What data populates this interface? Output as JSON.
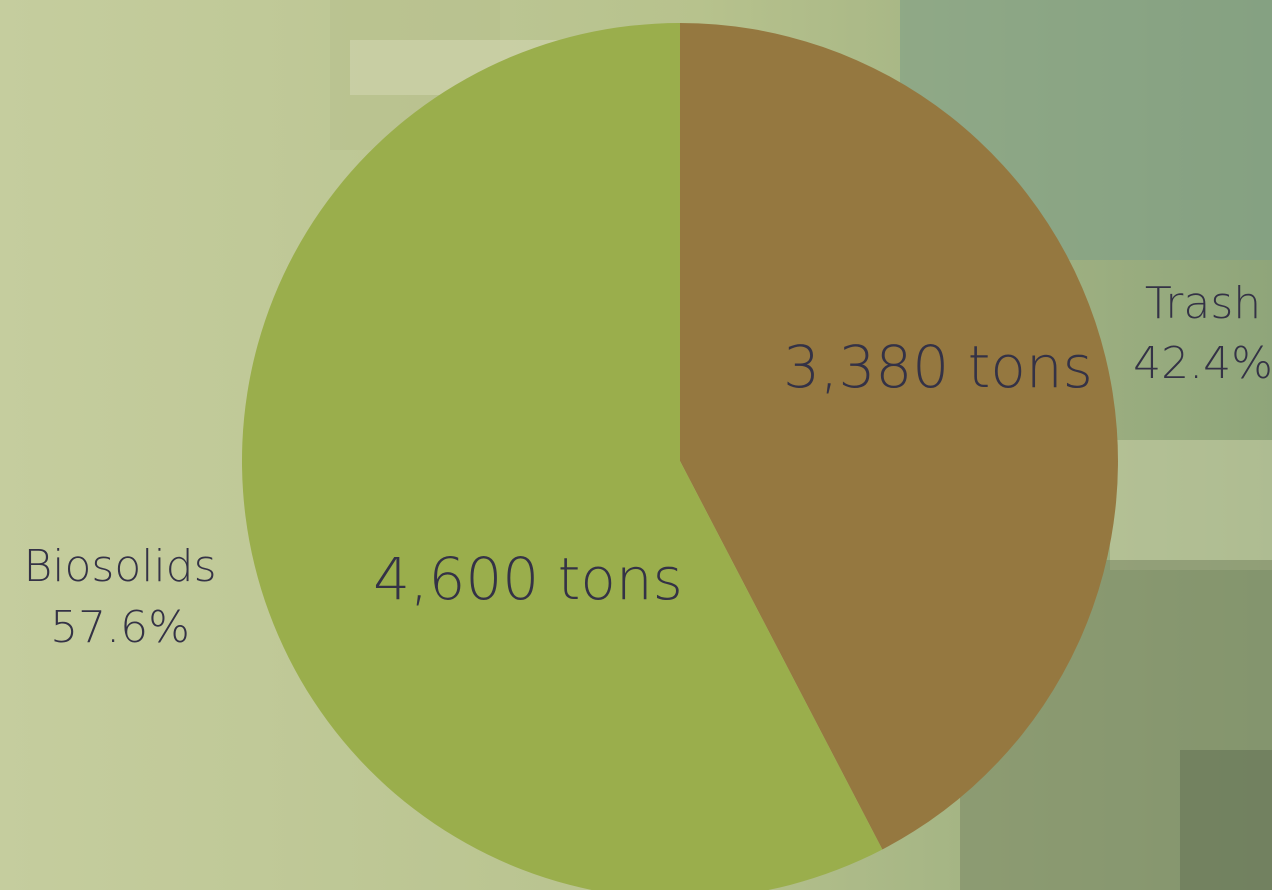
{
  "chart_data": {
    "type": "pie",
    "categories": [
      "Trash",
      "Biosolids"
    ],
    "values": [
      3380,
      4600
    ],
    "value_labels": [
      "3,380 tons",
      "4,600 tons"
    ],
    "percent_labels": [
      "42.4%",
      "57.6%"
    ],
    "colors": [
      "#957840",
      "#9aae4c"
    ],
    "start_angle_deg": 0,
    "direction": "clockwise"
  }
}
